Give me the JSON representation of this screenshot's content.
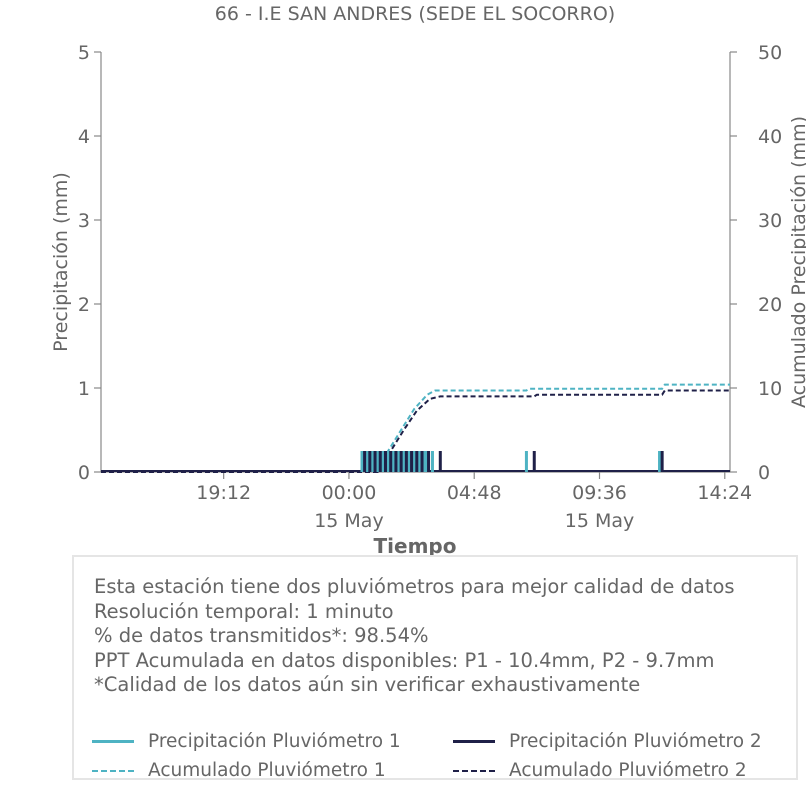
{
  "chart_data": {
    "type": "bar",
    "title": "66 - I.E SAN ANDRES (SEDE EL SOCORRO)",
    "xlabel": "Tiempo",
    "ylabel": "Precipitación (mm)",
    "y2label": "Acumulado Precipitación (mm)",
    "ylim": [
      0,
      5
    ],
    "y2lim": [
      0,
      50
    ],
    "yticks": [
      "0",
      "1",
      "2",
      "3",
      "4",
      "5"
    ],
    "y2ticks": [
      "0",
      "10",
      "20",
      "30",
      "40",
      "50"
    ],
    "xlim_hours": [
      14.5,
      14.6
    ],
    "xticks": [
      {
        "h": 19.2,
        "label": "19:12",
        "sub": ""
      },
      {
        "h": 24.0,
        "label": "00:00",
        "sub": "15 May"
      },
      {
        "h": 28.8,
        "label": "04:48",
        "sub": ""
      },
      {
        "h": 33.6,
        "label": "09:36",
        "sub": "15 May"
      },
      {
        "h": 38.4,
        "label": "14:24",
        "sub": ""
      }
    ],
    "series": [
      {
        "name": "Precipitación Pluviómetro 1",
        "kind": "bar",
        "color": "#4eb3c3",
        "x": [
          24.5,
          24.7,
          24.9,
          25.1,
          25.3,
          25.5,
          25.7,
          25.9,
          26.1,
          26.3,
          26.5,
          26.7,
          26.9,
          27.0,
          27.2,
          30.8,
          35.9
        ],
        "values": [
          0.25,
          0.25,
          0.25,
          0.25,
          0.25,
          0.25,
          0.25,
          0.25,
          0.25,
          0.25,
          0.25,
          0.25,
          0.25,
          0.25,
          0.25,
          0.25,
          0.25
        ]
      },
      {
        "name": "Precipitación Pluviómetro 2",
        "kind": "bar",
        "color": "#1f2048",
        "x": [
          24.6,
          24.8,
          25.0,
          25.2,
          25.4,
          25.6,
          25.8,
          26.0,
          26.2,
          26.4,
          26.6,
          26.8,
          27.05,
          27.5,
          31.1,
          36.0
        ],
        "values": [
          0.25,
          0.25,
          0.25,
          0.25,
          0.25,
          0.25,
          0.25,
          0.25,
          0.25,
          0.25,
          0.25,
          0.25,
          0.25,
          0.25,
          0.25,
          0.25
        ]
      },
      {
        "name": "Acumulado Pluviómetro 1",
        "kind": "line",
        "axis": "right",
        "color": "#4eb3c3",
        "x": [
          14.5,
          25.0,
          25.5,
          26.0,
          26.5,
          27.0,
          27.3,
          30.8,
          30.9,
          36.0,
          36.1,
          38.6
        ],
        "values": [
          0,
          0,
          2.5,
          5.0,
          7.5,
          9.2,
          9.7,
          9.7,
          9.9,
          9.9,
          10.4,
          10.4
        ]
      },
      {
        "name": "Acumulado Pluviómetro 2",
        "kind": "line",
        "axis": "right",
        "color": "#1f2048",
        "x": [
          14.5,
          25.1,
          25.6,
          26.1,
          26.6,
          27.1,
          27.5,
          31.1,
          31.2,
          36.0,
          36.1,
          38.6
        ],
        "values": [
          0,
          0,
          2.5,
          5.0,
          7.3,
          8.7,
          9.0,
          9.0,
          9.2,
          9.2,
          9.7,
          9.7
        ]
      }
    ]
  },
  "info": {
    "lines": [
      "Esta estación tiene dos pluviómetros para mejor calidad de datos",
      "Resolución temporal: 1 minuto",
      "% de datos transmitidos*: 98.54%",
      "PPT Acumulada en datos disponibles: P1 - 10.4mm, P2 - 9.7mm",
      "*Calidad de los datos aún sin verificar exhaustivamente"
    ]
  },
  "legend": {
    "items": [
      {
        "label": "Precipitación Pluviómetro 1",
        "color": "#4eb3c3",
        "style": "solid"
      },
      {
        "label": "Precipitación Pluviómetro 2",
        "color": "#1f2048",
        "style": "solid"
      },
      {
        "label": "Acumulado Pluviómetro 1",
        "color": "#4eb3c3",
        "style": "dashed"
      },
      {
        "label": "Acumulado Pluviómetro 2",
        "color": "#1f2048",
        "style": "dashed"
      }
    ]
  }
}
